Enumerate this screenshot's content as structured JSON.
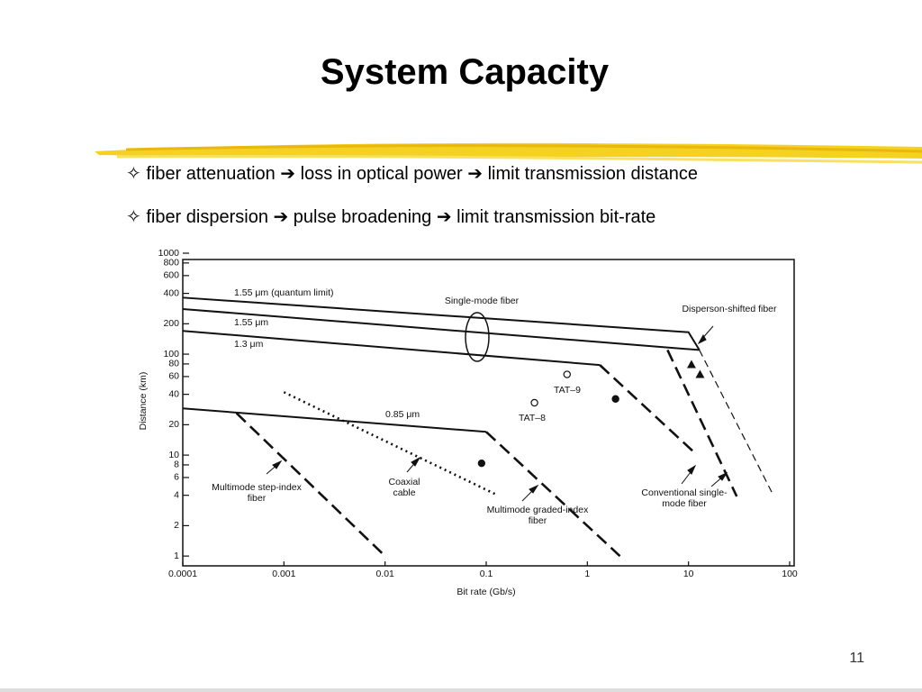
{
  "slide": {
    "title": "System Capacity",
    "bullets": [
      "✧ fiber attenuation ➔ loss in optical power ➔ limit transmission distance",
      "✧ fiber dispersion ➔ pulse broadening ➔ limit transmission bit-rate"
    ],
    "page_number": "11"
  },
  "chart_data": {
    "type": "line",
    "xscale": "log",
    "yscale": "log",
    "x_label": "Bit rate (Gb/s)",
    "y_label": "Distance (km)",
    "xlim": [
      0.0001,
      100
    ],
    "ylim": [
      0.8,
      1000
    ],
    "xticks": [
      0.0001,
      0.001,
      0.01,
      0.1,
      1,
      10,
      100
    ],
    "yticks": [
      1,
      2,
      4,
      6,
      8,
      10,
      20,
      40,
      60,
      80,
      100,
      200,
      400,
      600,
      800,
      1000
    ],
    "annotations": [
      "Single-mode fiber"
    ],
    "series": [
      {
        "name": "1.55 μm (quantum limit)",
        "style": "solid",
        "x": [
          0.0001,
          10,
          12.8
        ],
        "values": [
          363,
          165,
          110
        ]
      },
      {
        "name": "1.55 μm",
        "style": "solid",
        "x": [
          0.0001,
          12.8
        ],
        "values": [
          280,
          110
        ]
      },
      {
        "name": "Disperson-shifted fiber",
        "style": "thin-dashed",
        "x": [
          12.8,
          69
        ],
        "values": [
          110,
          4
        ]
      },
      {
        "name": "1.3 μm",
        "style": "solid",
        "x": [
          0.0001,
          1.33
        ],
        "values": [
          170,
          78
        ]
      },
      {
        "name": "Conventional single-mode fiber",
        "style": "dashed",
        "x": [
          1.33,
          11
        ],
        "values": [
          78,
          11
        ]
      },
      {
        "name": "0.85 μm",
        "style": "solid",
        "x": [
          0.0001,
          0.1
        ],
        "values": [
          29,
          17
        ]
      },
      {
        "name": "Multimode graded-index fiber",
        "style": "dashed",
        "x": [
          0.1,
          2.1
        ],
        "values": [
          17,
          1
        ]
      },
      {
        "name": "Multimode step-index fiber",
        "style": "dashed",
        "x": [
          0.00034,
          0.01
        ],
        "values": [
          26,
          1
        ]
      },
      {
        "name": "Coaxial cable",
        "style": "dotted",
        "x": [
          0.001,
          0.13
        ],
        "values": [
          42,
          4
        ]
      },
      {
        "style": "dashed",
        "x": [
          6.2,
          30
        ],
        "values": [
          110,
          3.9
        ]
      },
      {
        "name": "TAT–9",
        "marker": "circle-open",
        "x": [
          0.63
        ],
        "values": [
          63
        ]
      },
      {
        "name": "TAT–8",
        "marker": "circle-open",
        "x": [
          0.3
        ],
        "values": [
          33
        ]
      },
      {
        "marker": "circle",
        "x": [
          1.9,
          0.09
        ],
        "values": [
          36,
          8.3
        ]
      },
      {
        "marker": "triangle",
        "x": [
          10.7,
          13
        ],
        "values": [
          79,
          63
        ]
      }
    ]
  }
}
